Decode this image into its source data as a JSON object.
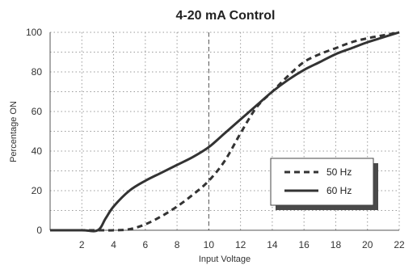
{
  "chart_data": {
    "type": "line",
    "title": "4-20 mA Control",
    "xlabel": "Input Voltage",
    "ylabel": "Percentage ON",
    "xlim": [
      0,
      22
    ],
    "ylim": [
      0,
      100
    ],
    "x_ticks": [
      2,
      4,
      6,
      8,
      10,
      12,
      14,
      16,
      18,
      20,
      22
    ],
    "y_ticks": [
      0,
      20,
      40,
      60,
      80,
      100
    ],
    "grid": true,
    "reference_line_x": 10,
    "legend_position": "bottom-right",
    "series": [
      {
        "name": "50 Hz",
        "style": "dashed",
        "color": "#333333",
        "x": [
          0,
          2,
          3,
          4,
          5,
          6,
          7,
          8,
          9,
          10,
          11,
          12,
          13,
          14,
          15,
          16,
          17,
          18,
          19,
          20,
          21,
          22
        ],
        "y": [
          0,
          0,
          0,
          0,
          0.5,
          3,
          7,
          12,
          18,
          25,
          35,
          49,
          62,
          70,
          78,
          85,
          89,
          92,
          95,
          97,
          98.5,
          100
        ]
      },
      {
        "name": "60 Hz",
        "style": "solid",
        "color": "#333333",
        "x": [
          0,
          2,
          3,
          3.5,
          4,
          5,
          6,
          7,
          8,
          9,
          10,
          11,
          12,
          13,
          14,
          15,
          16,
          17,
          18,
          19,
          20,
          21,
          22
        ],
        "y": [
          0,
          0,
          0,
          6,
          12,
          20,
          25,
          29,
          33,
          37,
          42,
          49,
          56,
          63,
          70,
          76,
          81,
          85,
          89,
          92,
          95,
          97.5,
          100
        ]
      }
    ]
  }
}
